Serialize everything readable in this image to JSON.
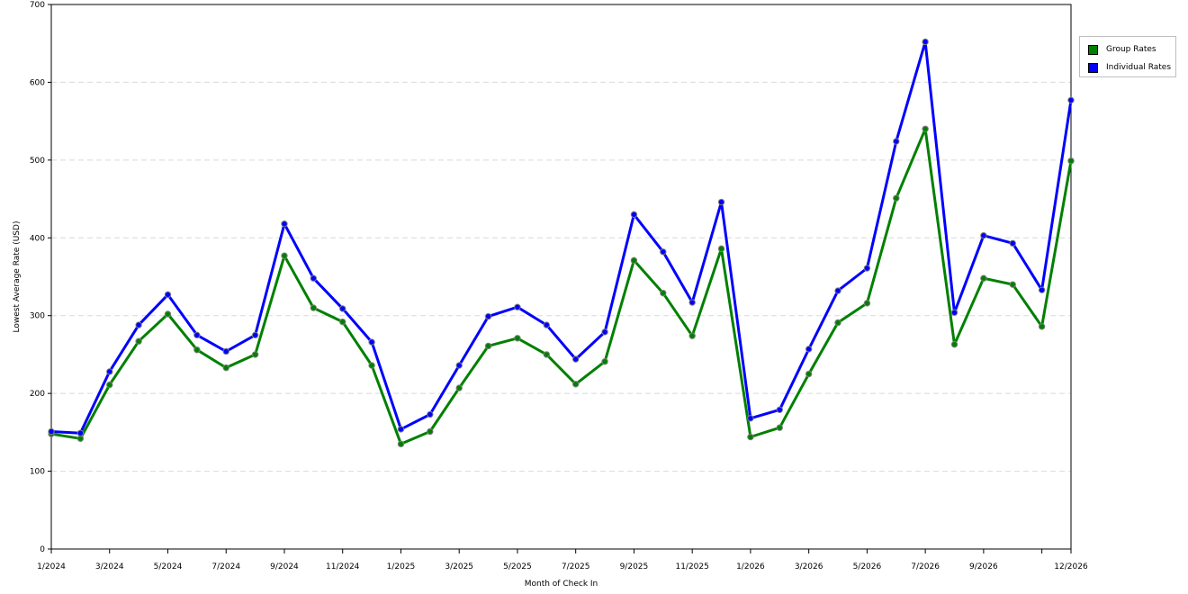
{
  "chart_data": {
    "type": "line",
    "xlabel": "Month of Check In",
    "ylabel": "Lowest Average Rate (USD)",
    "ylim": [
      0,
      700
    ],
    "yticks": [
      0,
      100,
      200,
      300,
      400,
      500,
      600,
      700
    ],
    "x": [
      "1/2024",
      "2/2024",
      "3/2024",
      "4/2024",
      "5/2024",
      "6/2024",
      "7/2024",
      "8/2024",
      "9/2024",
      "10/2024",
      "11/2024",
      "12/2024",
      "1/2025",
      "2/2025",
      "3/2025",
      "4/2025",
      "5/2025",
      "6/2025",
      "7/2025",
      "8/2025",
      "9/2025",
      "10/2025",
      "11/2025",
      "12/2025",
      "1/2026",
      "2/2026",
      "3/2026",
      "4/2026",
      "5/2026",
      "6/2026",
      "7/2026",
      "8/2026",
      "9/2026",
      "10/2026",
      "11/2026",
      "12/2026"
    ],
    "xtick_labels": [
      "1/2024",
      "",
      "3/2024",
      "",
      "5/2024",
      "",
      "7/2024",
      "",
      "9/2024",
      "",
      "11/2024",
      "",
      "1/2025",
      "",
      "3/2025",
      "",
      "5/2025",
      "",
      "7/2025",
      "",
      "9/2025",
      "",
      "11/2025",
      "",
      "1/2026",
      "",
      "3/2026",
      "",
      "5/2026",
      "",
      "7/2026",
      "",
      "9/2026",
      "",
      "",
      "12/2026"
    ],
    "grid": true,
    "legend_position": "right",
    "series": [
      {
        "name": "Group Rates",
        "color": "#008000",
        "values": [
          148,
          142,
          211,
          267,
          302,
          256,
          233,
          250,
          377,
          310,
          292,
          236,
          135,
          151,
          207,
          261,
          271,
          250,
          212,
          241,
          371,
          329,
          274,
          386,
          144,
          156,
          225,
          291,
          316,
          451,
          540,
          263,
          348,
          340,
          286,
          499
        ]
      },
      {
        "name": "Individual Rates",
        "color": "#0000ff",
        "values": [
          151,
          149,
          228,
          288,
          327,
          275,
          254,
          275,
          418,
          348,
          309,
          266,
          154,
          173,
          236,
          299,
          311,
          288,
          244,
          279,
          430,
          382,
          317,
          446,
          168,
          179,
          257,
          332,
          361,
          524,
          652,
          304,
          403,
          393,
          333,
          577
        ]
      }
    ]
  }
}
